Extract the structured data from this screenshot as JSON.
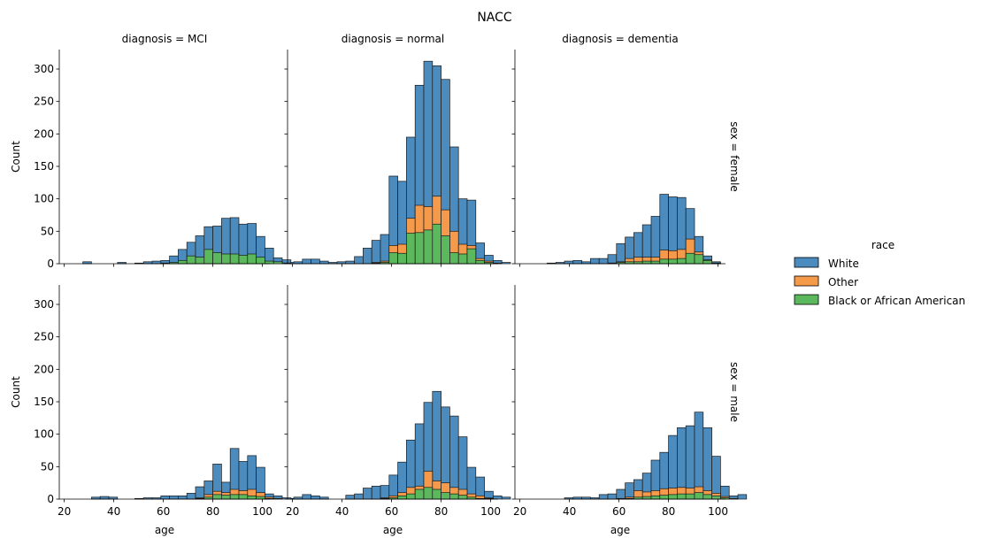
{
  "chart_data": {
    "type": "bar",
    "stacked": true,
    "title": "NACC",
    "bin_width": 3.5,
    "bin_start": 20.5,
    "xlim": [
      18,
      103
    ],
    "ylim": [
      0,
      330
    ],
    "xticks": [
      20,
      40,
      60,
      80,
      100
    ],
    "yticks": [
      0,
      50,
      100,
      150,
      200,
      250,
      300
    ],
    "xlabel": "age",
    "ylabel": "Count",
    "legend": {
      "title": "race",
      "position": "right",
      "entries": [
        {
          "name": "White",
          "color": "#4c8bbd"
        },
        {
          "name": "Other",
          "color": "#f59a4a"
        },
        {
          "name": "Black or African American",
          "color": "#5cb85c"
        }
      ]
    },
    "col_labels": [
      "diagnosis = MCI",
      "diagnosis = normal",
      "diagnosis = dementia"
    ],
    "row_labels": [
      "sex = female",
      "sex = male"
    ],
    "panels": [
      {
        "row": 0,
        "col": 0,
        "bin_totals": {
          "White": [
            0,
            0,
            3,
            0,
            0,
            0,
            2,
            0,
            1,
            3,
            4,
            5,
            12,
            22,
            33,
            43,
            57,
            58,
            70,
            71,
            61,
            62,
            42,
            24,
            9,
            6,
            2,
            0
          ],
          "Other": [
            0,
            0,
            0,
            0,
            0,
            0,
            0,
            0,
            0,
            0,
            0,
            0,
            1,
            1,
            4,
            4,
            4,
            3,
            2,
            3,
            3,
            3,
            2,
            1,
            0,
            1,
            0,
            0
          ],
          "Black or African American": [
            0,
            0,
            0,
            0,
            0,
            0,
            0,
            0,
            0,
            0,
            0,
            1,
            2,
            5,
            12,
            10,
            22,
            17,
            15,
            15,
            13,
            15,
            10,
            4,
            3,
            1,
            0,
            0
          ]
        }
      },
      {
        "row": 0,
        "col": 1,
        "bin_totals": {
          "White": [
            3,
            7,
            7,
            4,
            2,
            3,
            4,
            11,
            24,
            36,
            45,
            135,
            127,
            195,
            275,
            312,
            305,
            284,
            180,
            100,
            98,
            32,
            13,
            5,
            2,
            0
          ],
          "Other": [
            0,
            0,
            0,
            0,
            0,
            0,
            0,
            0,
            0,
            2,
            4,
            28,
            30,
            70,
            90,
            88,
            104,
            83,
            50,
            30,
            28,
            8,
            4,
            1,
            0,
            0
          ],
          "Black or African American": [
            0,
            0,
            0,
            0,
            0,
            0,
            0,
            0,
            0,
            1,
            2,
            17,
            16,
            47,
            48,
            52,
            61,
            43,
            17,
            15,
            23,
            5,
            2,
            0,
            0,
            0
          ]
        }
      },
      {
        "row": 0,
        "col": 2,
        "bin_totals": {
          "White": [
            0,
            0,
            0,
            1,
            2,
            4,
            5,
            3,
            8,
            8,
            14,
            31,
            41,
            48,
            60,
            73,
            107,
            103,
            102,
            85,
            42,
            12,
            3,
            0
          ],
          "Other": [
            0,
            0,
            0,
            0,
            0,
            0,
            0,
            0,
            0,
            0,
            1,
            3,
            8,
            10,
            10,
            10,
            21,
            20,
            22,
            38,
            18,
            6,
            1,
            0
          ],
          "Black or African American": [
            0,
            0,
            0,
            0,
            0,
            0,
            0,
            0,
            0,
            0,
            1,
            2,
            3,
            3,
            4,
            4,
            7,
            7,
            8,
            16,
            14,
            5,
            1,
            0
          ]
        }
      },
      {
        "row": 1,
        "col": 0,
        "bin_totals": {
          "White": [
            0,
            0,
            0,
            3,
            4,
            3,
            0,
            0,
            1,
            2,
            2,
            5,
            5,
            5,
            9,
            19,
            28,
            54,
            26,
            78,
            58,
            67,
            49,
            8,
            5,
            2,
            1,
            0
          ],
          "Other": [
            0,
            0,
            0,
            0,
            0,
            0,
            0,
            0,
            0,
            0,
            0,
            0,
            0,
            0,
            0,
            2,
            7,
            12,
            10,
            15,
            13,
            15,
            10,
            3,
            1,
            0,
            0,
            0
          ],
          "Black or African American": [
            0,
            0,
            0,
            0,
            0,
            0,
            0,
            0,
            0,
            0,
            0,
            0,
            0,
            0,
            0,
            1,
            3,
            7,
            6,
            7,
            7,
            5,
            4,
            1,
            0,
            0,
            0,
            0
          ]
        }
      },
      {
        "row": 1,
        "col": 1,
        "bin_totals": {
          "White": [
            3,
            7,
            5,
            3,
            0,
            0,
            6,
            8,
            17,
            20,
            21,
            37,
            57,
            91,
            116,
            149,
            166,
            142,
            128,
            96,
            49,
            34,
            12,
            5,
            3,
            0
          ],
          "Other": [
            0,
            0,
            0,
            0,
            0,
            0,
            0,
            0,
            0,
            0,
            2,
            5,
            10,
            18,
            20,
            43,
            28,
            25,
            18,
            15,
            8,
            5,
            2,
            0,
            0,
            0
          ],
          "Black or African American": [
            0,
            0,
            0,
            0,
            0,
            0,
            0,
            0,
            0,
            0,
            1,
            2,
            5,
            8,
            15,
            18,
            15,
            10,
            8,
            6,
            3,
            1,
            1,
            0,
            0,
            0
          ]
        }
      },
      {
        "row": 1,
        "col": 2,
        "bin_totals": {
          "White": [
            0,
            0,
            0,
            0,
            0,
            2,
            3,
            3,
            2,
            7,
            8,
            15,
            25,
            30,
            40,
            60,
            72,
            98,
            110,
            113,
            134,
            110,
            66,
            20,
            5,
            7
          ],
          "Other": [
            0,
            0,
            0,
            0,
            0,
            0,
            0,
            0,
            0,
            0,
            0,
            1,
            3,
            13,
            11,
            13,
            16,
            17,
            18,
            17,
            19,
            13,
            9,
            4,
            1,
            0
          ],
          "Black or African American": [
            0,
            0,
            0,
            0,
            0,
            0,
            0,
            0,
            0,
            0,
            0,
            0,
            1,
            3,
            4,
            5,
            6,
            7,
            8,
            8,
            10,
            7,
            5,
            2,
            0,
            0
          ]
        }
      }
    ]
  }
}
